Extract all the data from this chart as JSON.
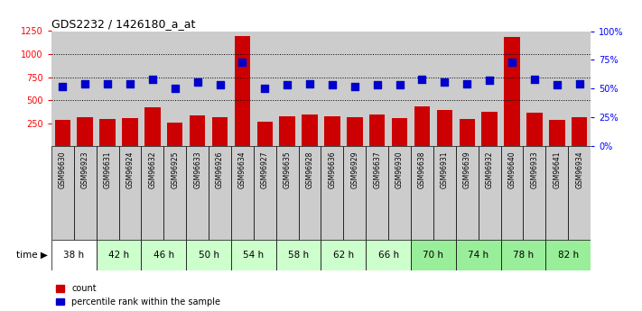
{
  "title": "GDS2232 / 1426180_a_at",
  "samples": [
    "GSM96630",
    "GSM96923",
    "GSM96631",
    "GSM96924",
    "GSM96632",
    "GSM96925",
    "GSM96633",
    "GSM96926",
    "GSM96634",
    "GSM96927",
    "GSM96635",
    "GSM96928",
    "GSM96636",
    "GSM96929",
    "GSM96637",
    "GSM96930",
    "GSM96638",
    "GSM96931",
    "GSM96639",
    "GSM96932",
    "GSM96640",
    "GSM96933",
    "GSM96641",
    "GSM96934"
  ],
  "time_groups": [
    {
      "label": "38 h",
      "indices": [
        0,
        1
      ],
      "color": "#ffffff"
    },
    {
      "label": "42 h",
      "indices": [
        2,
        3
      ],
      "color": "#ccffcc"
    },
    {
      "label": "46 h",
      "indices": [
        4,
        5
      ],
      "color": "#ccffcc"
    },
    {
      "label": "50 h",
      "indices": [
        6,
        7
      ],
      "color": "#ccffcc"
    },
    {
      "label": "54 h",
      "indices": [
        8,
        9
      ],
      "color": "#ccffcc"
    },
    {
      "label": "58 h",
      "indices": [
        10,
        11
      ],
      "color": "#ccffcc"
    },
    {
      "label": "62 h",
      "indices": [
        12,
        13
      ],
      "color": "#ccffcc"
    },
    {
      "label": "66 h",
      "indices": [
        14,
        15
      ],
      "color": "#ccffcc"
    },
    {
      "label": "70 h",
      "indices": [
        16,
        17
      ],
      "color": "#99ee99"
    },
    {
      "label": "74 h",
      "indices": [
        18,
        19
      ],
      "color": "#99ee99"
    },
    {
      "label": "78 h",
      "indices": [
        20,
        21
      ],
      "color": "#99ee99"
    },
    {
      "label": "82 h",
      "indices": [
        22,
        23
      ],
      "color": "#99ee99"
    }
  ],
  "bar_values": [
    290,
    310,
    300,
    305,
    420,
    260,
    335,
    315,
    1200,
    265,
    320,
    340,
    325,
    315,
    340,
    305,
    430,
    395,
    300,
    375,
    1190,
    360,
    290,
    310
  ],
  "dot_percentiles": [
    52,
    54,
    54,
    54,
    58,
    50,
    56,
    53,
    73,
    50,
    53,
    54,
    53,
    52,
    53,
    53,
    58,
    56,
    54,
    57,
    73,
    58,
    53,
    54
  ],
  "bar_color": "#cc0000",
  "dot_color": "#0000cc",
  "ylim_left": [
    0,
    1250
  ],
  "ylim_right": [
    0,
    100
  ],
  "yticks_left": [
    250,
    500,
    750,
    1000,
    1250
  ],
  "yticks_right": [
    0,
    25,
    50,
    75,
    100
  ],
  "grid_values": [
    500,
    750,
    1000
  ],
  "sample_bg": "#cccccc",
  "bar_width": 0.7,
  "dot_size": 40
}
